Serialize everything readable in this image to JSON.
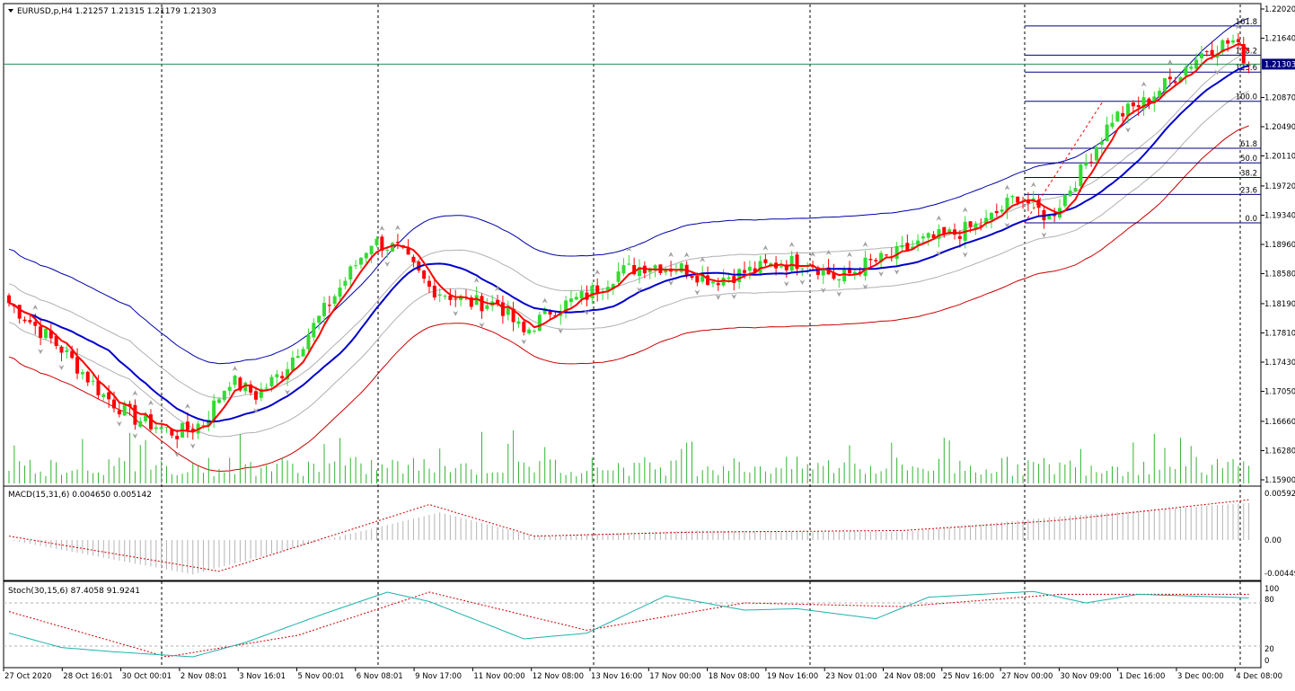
{
  "window": {
    "symbol_header": "EURUSD,p,H4",
    "ohlc": "1.21257 1.21315 1.21179 1.21303",
    "last_price_label": "1.21303",
    "colors": {
      "frame": "#000000",
      "bull_candle": "#32dc32",
      "bear_candle": "#ff0000",
      "ma_fast": "#ff0000",
      "ma_slow": "#0000cc",
      "envelope_outer": "#0000aa",
      "envelope_lower": "#cc0000",
      "envelope_inner": "#b0b0b0",
      "fibo": "#000080",
      "volume": "#32b432",
      "macd_hist": "#b4b4b4",
      "macd_signal": "#cc0000",
      "stoch_main": "#20b2aa",
      "stoch_signal": "#cc0000",
      "price_label_bg": "#000080"
    }
  },
  "time_axis": [
    "27 Oct 2020",
    "28 Oct 16:01",
    "30 Oct 00:01",
    "2 Nov 08:01",
    "3 Nov 16:01",
    "5 Nov 00:01",
    "6 Nov 08:01",
    "9 Nov 17:00",
    "11 Nov 00:00",
    "12 Nov 08:00",
    "13 Nov 16:00",
    "17 Nov 00:00",
    "18 Nov 08:00",
    "19 Nov 16:00",
    "23 Nov 01:00",
    "24 Nov 08:00",
    "25 Nov 16:00",
    "27 Nov 00:00",
    "30 Nov 09:00",
    "1 Dec 16:00",
    "3 Dec 00:00",
    "4 Dec 08:00"
  ],
  "price_axis": [
    "1.22020",
    "1.21640",
    "1.20870",
    "1.20490",
    "1.20110",
    "1.19720",
    "1.19340",
    "1.18960",
    "1.18580",
    "1.18190",
    "1.17810",
    "1.17430",
    "1.17050",
    "1.16660",
    "1.16280",
    "1.15900"
  ],
  "fibo_levels": [
    {
      "label": "161.8",
      "price": 1.218
    },
    {
      "label": "138.2",
      "price": 1.2142
    },
    {
      "label": "123.6",
      "price": 1.212
    },
    {
      "label": "100.0",
      "price": 1.2082
    },
    {
      "label": "61.8",
      "price": 1.2021
    },
    {
      "label": "50.0",
      "price": 1.2002
    },
    {
      "label": "38.2",
      "price": 1.1983
    },
    {
      "label": "23.6",
      "price": 1.1961
    },
    {
      "label": "0.0",
      "price": 1.1924
    }
  ],
  "macd": {
    "header": "MACD(15,31,6) 0.004650 0.005142",
    "axis": [
      "0.00592",
      "0.00",
      "-0.00449"
    ]
  },
  "stoch": {
    "header": "Stoch(30,15,6) 87.4058 91.9241",
    "axis": [
      "100",
      "80",
      "20",
      "0"
    ]
  },
  "chart_data": {
    "type": "candlestick",
    "timeframe": "H4",
    "ylim": [
      1.159,
      1.2202
    ],
    "ticks": [
      1.2202,
      1.2164,
      1.2087,
      1.2049,
      1.2011,
      1.1972,
      1.1934,
      1.1896,
      1.1858,
      1.1819,
      1.1781,
      1.1743,
      1.1705,
      1.1666,
      1.1628,
      1.159
    ],
    "close_anchors": [
      [
        0,
        1.182
      ],
      [
        10,
        1.176
      ],
      [
        18,
        1.17
      ],
      [
        24,
        1.167
      ],
      [
        32,
        1.165
      ],
      [
        37,
        1.1665
      ],
      [
        42,
        1.172
      ],
      [
        47,
        1.17
      ],
      [
        52,
        1.173
      ],
      [
        58,
        1.179
      ],
      [
        64,
        1.185
      ],
      [
        69,
        1.19
      ],
      [
        74,
        1.189
      ],
      [
        80,
        1.184
      ],
      [
        88,
        1.182
      ],
      [
        93,
        1.182
      ],
      [
        98,
        1.178
      ],
      [
        103,
        1.181
      ],
      [
        110,
        1.183
      ],
      [
        116,
        1.186
      ],
      [
        122,
        1.187
      ],
      [
        128,
        1.1865
      ],
      [
        134,
        1.185
      ],
      [
        140,
        1.186
      ],
      [
        146,
        1.187
      ],
      [
        152,
        1.1875
      ],
      [
        158,
        1.185
      ],
      [
        163,
        1.187
      ],
      [
        168,
        1.188
      ],
      [
        174,
        1.19
      ],
      [
        180,
        1.191
      ],
      [
        186,
        1.1925
      ],
      [
        192,
        1.196
      ],
      [
        198,
        1.193
      ],
      [
        204,
        1.199
      ],
      [
        210,
        1.206
      ],
      [
        216,
        1.208
      ],
      [
        222,
        1.2115
      ],
      [
        228,
        1.215
      ],
      [
        233,
        1.216
      ],
      [
        236,
        1.213
      ]
    ],
    "vertical_separators": [
      1,
      4,
      8,
      12,
      16,
      20
    ],
    "macd_signal_anchors": [
      [
        0,
        0.0005
      ],
      [
        40,
        -0.004
      ],
      [
        80,
        0.0045
      ],
      [
        100,
        0.0005
      ],
      [
        130,
        0.001
      ],
      [
        170,
        0.0012
      ],
      [
        200,
        0.0025
      ],
      [
        236,
        0.0051
      ]
    ],
    "macd_hist_anchors": [
      [
        0,
        0.0
      ],
      [
        35,
        -0.0044
      ],
      [
        60,
        0.0
      ],
      [
        82,
        0.0035
      ],
      [
        100,
        0.0005
      ],
      [
        130,
        0.0012
      ],
      [
        170,
        0.001
      ],
      [
        200,
        0.003
      ],
      [
        236,
        0.0047
      ]
    ],
    "stoch_main_anchors": [
      [
        0,
        38
      ],
      [
        10,
        18
      ],
      [
        20,
        12
      ],
      [
        35,
        5
      ],
      [
        45,
        25
      ],
      [
        60,
        65
      ],
      [
        72,
        95
      ],
      [
        80,
        82
      ],
      [
        98,
        30
      ],
      [
        110,
        38
      ],
      [
        125,
        90
      ],
      [
        140,
        70
      ],
      [
        150,
        72
      ],
      [
        165,
        58
      ],
      [
        175,
        88
      ],
      [
        195,
        96
      ],
      [
        205,
        80
      ],
      [
        215,
        92
      ],
      [
        236,
        87
      ]
    ],
    "stoch_signal_anchors": [
      [
        0,
        68
      ],
      [
        30,
        5
      ],
      [
        55,
        35
      ],
      [
        80,
        95
      ],
      [
        110,
        42
      ],
      [
        140,
        80
      ],
      [
        170,
        75
      ],
      [
        200,
        92
      ],
      [
        236,
        92
      ]
    ]
  }
}
